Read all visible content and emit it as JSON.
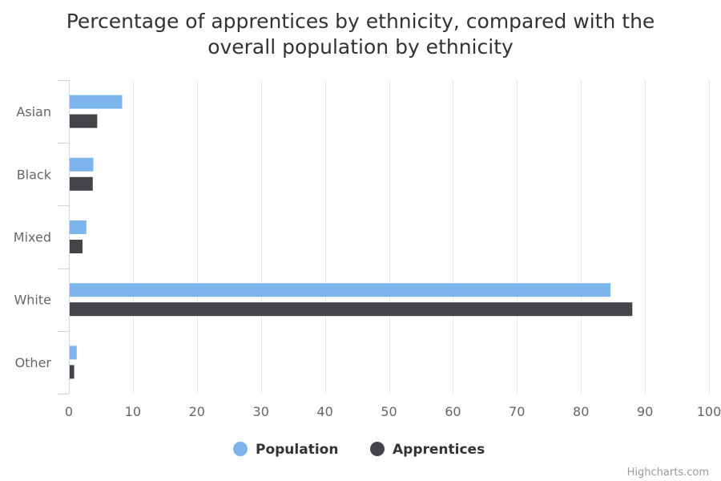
{
  "chart_data": {
    "type": "bar",
    "orientation": "horizontal",
    "title": "Percentage of apprentices by ethnicity, compared with the overall population by ethnicity",
    "title_lines": [
      "Percentage of apprentices by ethnicity, compared with the",
      "overall population by ethnicity"
    ],
    "categories": [
      "Asian",
      "Black",
      "Mixed",
      "White",
      "Other"
    ],
    "series": [
      {
        "name": "Population",
        "color": "#7cb5ec",
        "values": [
          8.2,
          3.7,
          2.6,
          84.5,
          1.1
        ]
      },
      {
        "name": "Apprentices",
        "color": "#434348",
        "values": [
          4.3,
          3.6,
          2.0,
          87.9,
          0.7
        ]
      }
    ],
    "xlim": [
      0,
      100
    ],
    "ticks": [
      "0",
      "10",
      "20",
      "30",
      "40",
      "50",
      "60",
      "70",
      "80",
      "90",
      "100"
    ],
    "grid": true,
    "legend_position": "bottom-center"
  },
  "credits": "Highcharts.com"
}
